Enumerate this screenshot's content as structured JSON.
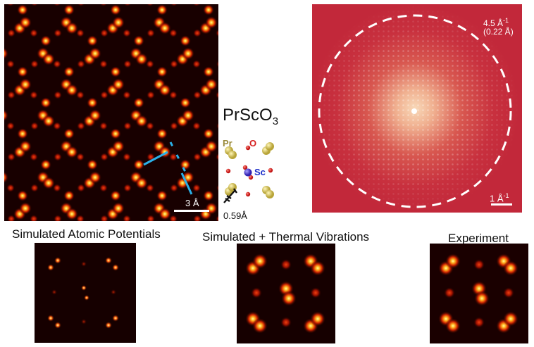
{
  "main_image": {
    "scalebar_label": "3 Å"
  },
  "structure": {
    "formula_base": "PrSc",
    "formula_o": "O",
    "formula_sub": "3",
    "label_pr": "Pr",
    "label_o": "O",
    "label_sc": "Sc",
    "displacement_label": "0.59Å",
    "colors": {
      "pr": "#d4c56a",
      "o": "#d62020",
      "sc": "#4a3fcf",
      "pr_label": "#9a8a3a",
      "sc_label": "#1a2cc8"
    }
  },
  "fft": {
    "radius_label_line1": "4.5 Å",
    "radius_label_sup": "-1",
    "radius_label_line2": "(0.22 Å)",
    "scalebar_label_base": "1 Å",
    "scalebar_label_sup": "-1"
  },
  "captions": {
    "simulated_potentials": "Simulated Atomic Potentials",
    "simulated_thermal": "Simulated + Thermal Vibrations",
    "experiment": "Experiment"
  },
  "colors": {
    "map_dark": "#120000",
    "map_mid": "#c81e00",
    "map_bright": "#ffff90",
    "fft_bg": "#c4283a",
    "annotation": "#2ab0e8"
  }
}
